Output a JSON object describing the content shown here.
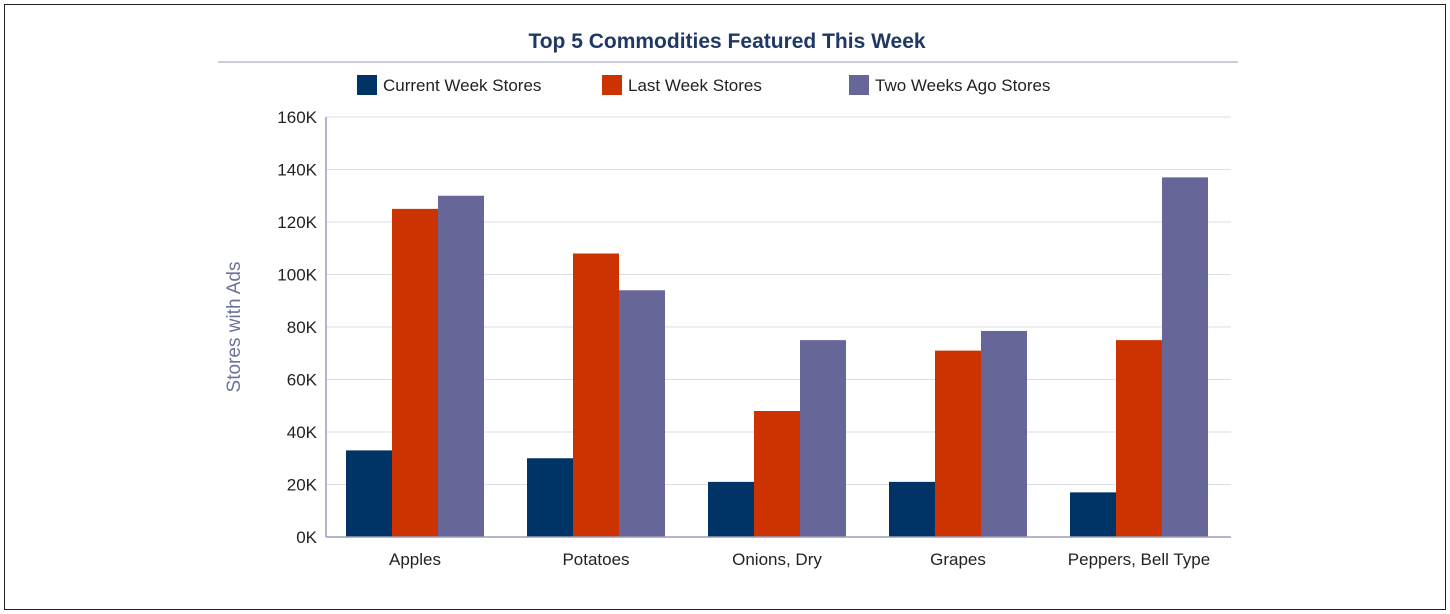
{
  "chart_data": {
    "type": "bar",
    "title": "Top 5 Commodities Featured This Week",
    "xlabel": "",
    "ylabel": "Stores with Ads",
    "ylim": [
      0,
      160000
    ],
    "yticks": [
      {
        "value": 0,
        "label": "0K"
      },
      {
        "value": 20000,
        "label": "20K"
      },
      {
        "value": 40000,
        "label": "40K"
      },
      {
        "value": 60000,
        "label": "60K"
      },
      {
        "value": 80000,
        "label": "80K"
      },
      {
        "value": 100000,
        "label": "100K"
      },
      {
        "value": 120000,
        "label": "120K"
      },
      {
        "value": 140000,
        "label": "140K"
      },
      {
        "value": 160000,
        "label": "160K"
      }
    ],
    "categories": [
      "Apples",
      "Potatoes",
      "Onions, Dry",
      "Grapes",
      "Peppers, Bell Type"
    ],
    "series": [
      {
        "name": "Current Week Stores",
        "color": "#003366",
        "values": [
          33000,
          30000,
          21000,
          21000,
          17000
        ]
      },
      {
        "name": "Last Week Stores",
        "color": "#cc3300",
        "values": [
          125000,
          108000,
          48000,
          71000,
          75000
        ]
      },
      {
        "name": "Two Weeks Ago Stores",
        "color": "#666699",
        "values": [
          130000,
          94000,
          75000,
          78500,
          137000
        ]
      }
    ],
    "grid": true,
    "legend_position": "top"
  }
}
